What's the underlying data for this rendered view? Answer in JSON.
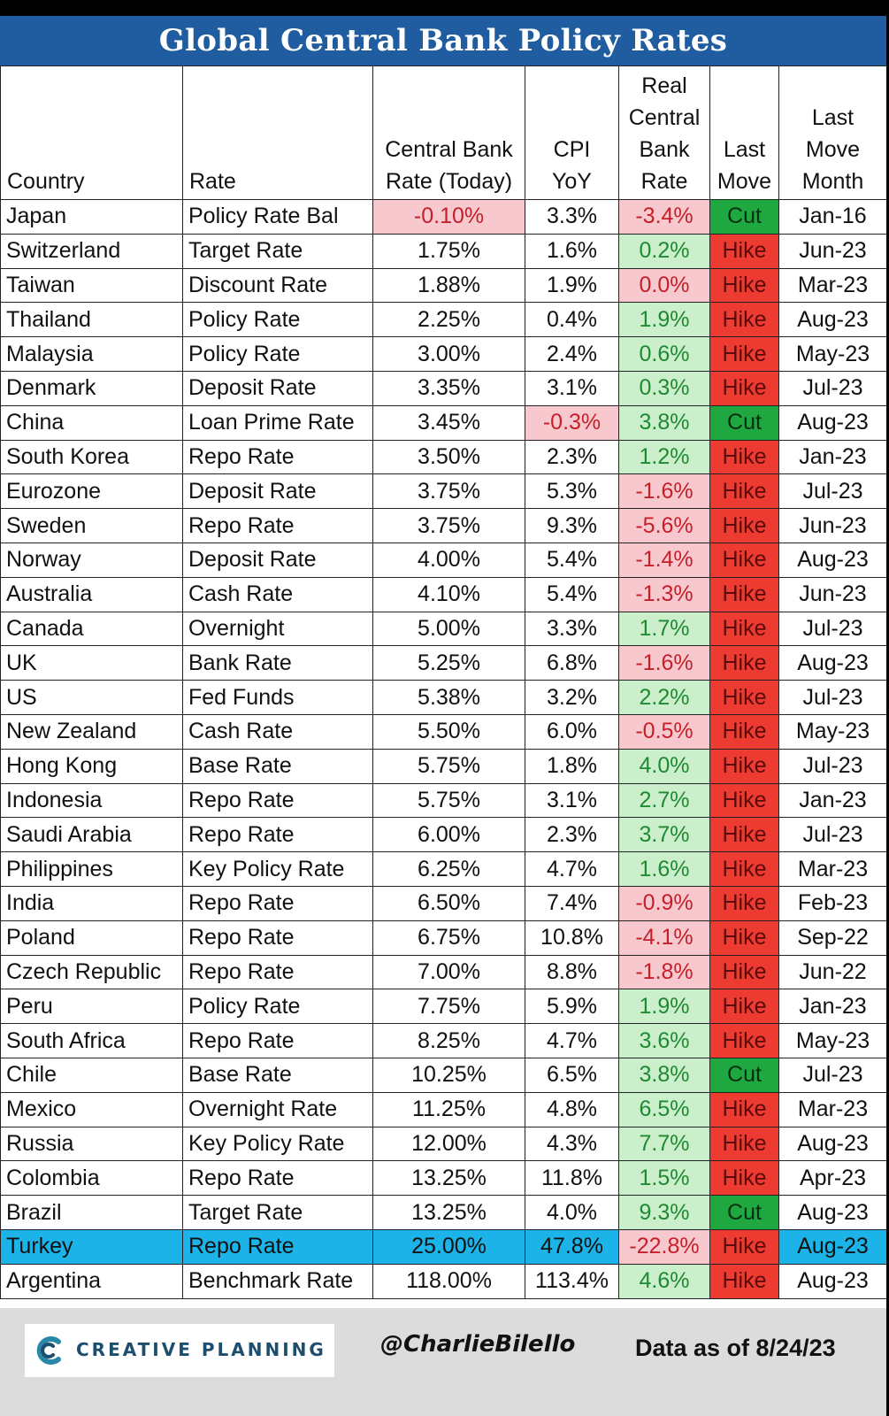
{
  "chart_data": {
    "type": "table",
    "title": "Global Central Bank Policy Rates",
    "columns": [
      "Country",
      "Rate",
      "Central Bank Rate (Today)",
      "CPI YoY",
      "Real Central Bank Rate",
      "Last Move",
      "Last Move Month"
    ],
    "rows": [
      {
        "country": "Japan",
        "rate": "Policy Rate Bal",
        "cb": "-0.10%",
        "cpi": "3.3%",
        "real": "-3.4%",
        "move": "Cut",
        "month": "Jan-16"
      },
      {
        "country": "Switzerland",
        "rate": "Target Rate",
        "cb": "1.75%",
        "cpi": "1.6%",
        "real": "0.2%",
        "move": "Hike",
        "month": "Jun-23"
      },
      {
        "country": "Taiwan",
        "rate": "Discount Rate",
        "cb": "1.88%",
        "cpi": "1.9%",
        "real": "0.0%",
        "move": "Hike",
        "month": "Mar-23"
      },
      {
        "country": "Thailand",
        "rate": "Policy Rate",
        "cb": "2.25%",
        "cpi": "0.4%",
        "real": "1.9%",
        "move": "Hike",
        "month": "Aug-23"
      },
      {
        "country": "Malaysia",
        "rate": "Policy Rate",
        "cb": "3.00%",
        "cpi": "2.4%",
        "real": "0.6%",
        "move": "Hike",
        "month": "May-23"
      },
      {
        "country": "Denmark",
        "rate": "Deposit Rate",
        "cb": "3.35%",
        "cpi": "3.1%",
        "real": "0.3%",
        "move": "Hike",
        "month": "Jul-23"
      },
      {
        "country": "China",
        "rate": "Loan Prime Rate",
        "cb": "3.45%",
        "cpi": "-0.3%",
        "real": "3.8%",
        "move": "Cut",
        "month": "Aug-23"
      },
      {
        "country": "South Korea",
        "rate": "Repo Rate",
        "cb": "3.50%",
        "cpi": "2.3%",
        "real": "1.2%",
        "move": "Hike",
        "month": "Jan-23"
      },
      {
        "country": "Eurozone",
        "rate": "Deposit Rate",
        "cb": "3.75%",
        "cpi": "5.3%",
        "real": "-1.6%",
        "move": "Hike",
        "month": "Jul-23"
      },
      {
        "country": "Sweden",
        "rate": "Repo Rate",
        "cb": "3.75%",
        "cpi": "9.3%",
        "real": "-5.6%",
        "move": "Hike",
        "month": "Jun-23"
      },
      {
        "country": "Norway",
        "rate": "Deposit Rate",
        "cb": "4.00%",
        "cpi": "5.4%",
        "real": "-1.4%",
        "move": "Hike",
        "month": "Aug-23"
      },
      {
        "country": "Australia",
        "rate": "Cash Rate",
        "cb": "4.10%",
        "cpi": "5.4%",
        "real": "-1.3%",
        "move": "Hike",
        "month": "Jun-23"
      },
      {
        "country": "Canada",
        "rate": "Overnight",
        "cb": "5.00%",
        "cpi": "3.3%",
        "real": "1.7%",
        "move": "Hike",
        "month": "Jul-23"
      },
      {
        "country": "UK",
        "rate": "Bank Rate",
        "cb": "5.25%",
        "cpi": "6.8%",
        "real": "-1.6%",
        "move": "Hike",
        "month": "Aug-23"
      },
      {
        "country": "US",
        "rate": "Fed Funds",
        "cb": "5.38%",
        "cpi": "3.2%",
        "real": "2.2%",
        "move": "Hike",
        "month": "Jul-23"
      },
      {
        "country": "New Zealand",
        "rate": "Cash Rate",
        "cb": "5.50%",
        "cpi": "6.0%",
        "real": "-0.5%",
        "move": "Hike",
        "month": "May-23"
      },
      {
        "country": "Hong Kong",
        "rate": "Base Rate",
        "cb": "5.75%",
        "cpi": "1.8%",
        "real": "4.0%",
        "move": "Hike",
        "month": "Jul-23"
      },
      {
        "country": "Indonesia",
        "rate": "Repo Rate",
        "cb": "5.75%",
        "cpi": "3.1%",
        "real": "2.7%",
        "move": "Hike",
        "month": "Jan-23"
      },
      {
        "country": "Saudi Arabia",
        "rate": "Repo Rate",
        "cb": "6.00%",
        "cpi": "2.3%",
        "real": "3.7%",
        "move": "Hike",
        "month": "Jul-23"
      },
      {
        "country": "Philippines",
        "rate": "Key Policy Rate",
        "cb": "6.25%",
        "cpi": "4.7%",
        "real": "1.6%",
        "move": "Hike",
        "month": "Mar-23"
      },
      {
        "country": "India",
        "rate": "Repo Rate",
        "cb": "6.50%",
        "cpi": "7.4%",
        "real": "-0.9%",
        "move": "Hike",
        "month": "Feb-23"
      },
      {
        "country": "Poland",
        "rate": "Repo Rate",
        "cb": "6.75%",
        "cpi": "10.8%",
        "real": "-4.1%",
        "move": "Hike",
        "month": "Sep-22"
      },
      {
        "country": "Czech Republic",
        "rate": "Repo Rate",
        "cb": "7.00%",
        "cpi": "8.8%",
        "real": "-1.8%",
        "move": "Hike",
        "month": "Jun-22"
      },
      {
        "country": "Peru",
        "rate": "Policy Rate",
        "cb": "7.75%",
        "cpi": "5.9%",
        "real": "1.9%",
        "move": "Hike",
        "month": "Jan-23"
      },
      {
        "country": "South Africa",
        "rate": "Repo Rate",
        "cb": "8.25%",
        "cpi": "4.7%",
        "real": "3.6%",
        "move": "Hike",
        "month": "May-23"
      },
      {
        "country": "Chile",
        "rate": "Base Rate",
        "cb": "10.25%",
        "cpi": "6.5%",
        "real": "3.8%",
        "move": "Cut",
        "month": "Jul-23"
      },
      {
        "country": "Mexico",
        "rate": "Overnight Rate",
        "cb": "11.25%",
        "cpi": "4.8%",
        "real": "6.5%",
        "move": "Hike",
        "month": "Mar-23"
      },
      {
        "country": "Russia",
        "rate": "Key Policy Rate",
        "cb": "12.00%",
        "cpi": "4.3%",
        "real": "7.7%",
        "move": "Hike",
        "month": "Aug-23"
      },
      {
        "country": "Colombia",
        "rate": "Repo Rate",
        "cb": "13.25%",
        "cpi": "11.8%",
        "real": "1.5%",
        "move": "Hike",
        "month": "Apr-23"
      },
      {
        "country": "Brazil",
        "rate": "Target Rate",
        "cb": "13.25%",
        "cpi": "4.0%",
        "real": "9.3%",
        "move": "Cut",
        "month": "Aug-23"
      },
      {
        "country": "Turkey",
        "rate": "Repo Rate",
        "cb": "25.00%",
        "cpi": "47.8%",
        "real": "-22.8%",
        "move": "Hike",
        "month": "Aug-23",
        "highlight": true
      },
      {
        "country": "Argentina",
        "rate": "Benchmark Rate",
        "cb": "118.00%",
        "cpi": "113.4%",
        "real": "4.6%",
        "move": "Hike",
        "month": "Aug-23"
      }
    ]
  },
  "header": {
    "country": "Country",
    "rate": "Rate",
    "cb_rate_line1": "Central Bank",
    "cb_rate_line2": "Rate (Today)",
    "cpi_line1": "CPI",
    "cpi_line2": "YoY",
    "real_line1": "Real",
    "real_line2": "Central",
    "real_line3": "Bank",
    "real_line4": "Rate",
    "move_line1": "Last",
    "move_line2": "Move",
    "month_line1": "Last",
    "month_line2": "Move",
    "month_line3": "Month"
  },
  "footer": {
    "logo_text": "CREATIVE PLANNING",
    "handle": "@CharlieBilello",
    "data_as_of": "Data as of 8/24/23"
  },
  "colors": {
    "title_bar": "#1f5da0",
    "negative_fill": "#f7c9ce",
    "negative_text": "#c51f2a",
    "positive_fill": "#cbeecb",
    "positive_text": "#1e8a32",
    "hike": "#ee3b32",
    "cut": "#1fa83f",
    "highlight_row": "#1cb3e8"
  }
}
